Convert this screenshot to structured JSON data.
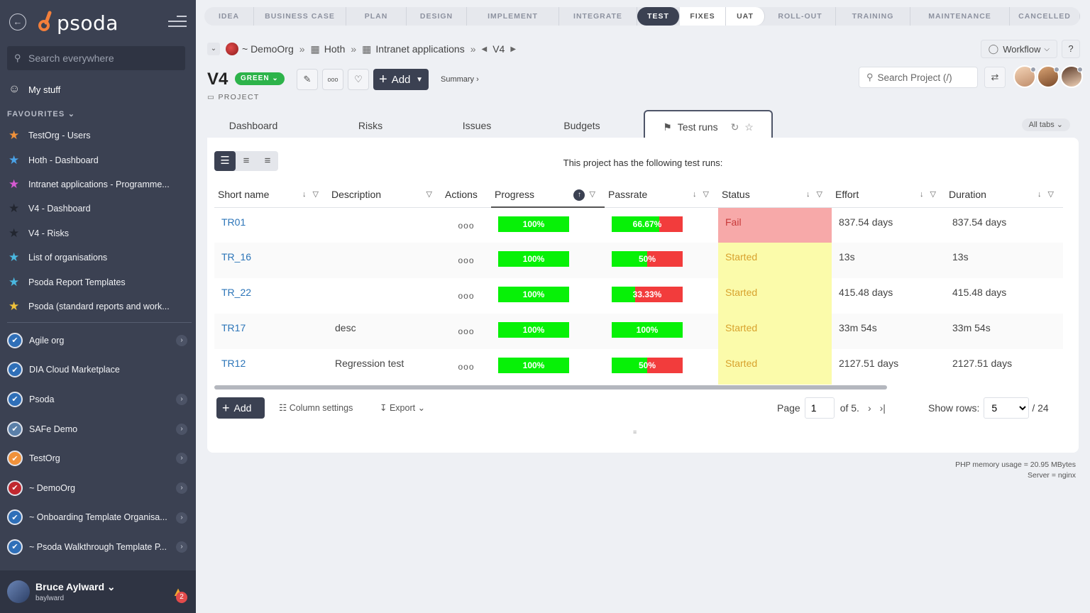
{
  "sidebar": {
    "logo_text": "psoda",
    "search_placeholder": "Search everywhere",
    "my_stuff": "My stuff",
    "favourites_heading": "FAVOURITES",
    "favourites": [
      {
        "label": "TestOrg - Users",
        "star_color": "#f0913a"
      },
      {
        "label": "Hoth - Dashboard",
        "star_color": "#4aa3e8"
      },
      {
        "label": "Intranet applications - Programme...",
        "star_color": "#d65ad2"
      },
      {
        "label": "V4 - Dashboard",
        "star_color": "#222630"
      },
      {
        "label": "V4 - Risks",
        "star_color": "#222630"
      },
      {
        "label": "List of organisations",
        "star_color": "#4ab8e0"
      },
      {
        "label": "Psoda Report Templates",
        "star_color": "#4ab8e0"
      },
      {
        "label": "Psoda (standard reports and work...",
        "star_color": "#f0c23a"
      }
    ],
    "organisations": [
      {
        "label": "Agile org",
        "badge_color": "#2f6fb8",
        "has_arrow": true
      },
      {
        "label": "DIA Cloud Marketplace",
        "badge_color": "#2f6fb8",
        "has_arrow": false
      },
      {
        "label": "Psoda",
        "badge_color": "#2f6fb8",
        "has_arrow": true
      },
      {
        "label": "SAFe Demo",
        "badge_color": "#5a7fa8",
        "has_arrow": true
      },
      {
        "label": "TestOrg",
        "badge_color": "#f0913a",
        "has_arrow": true
      },
      {
        "label": "~ DemoOrg",
        "badge_color": "#c0282f",
        "has_arrow": true
      },
      {
        "label": "~ Onboarding Template Organisa...",
        "badge_color": "#2f6fb8",
        "has_arrow": true
      },
      {
        "label": "~ Psoda Walkthrough Template P...",
        "badge_color": "#2f6fb8",
        "has_arrow": true
      }
    ],
    "user": {
      "name": "Bruce Aylward",
      "login": "baylward",
      "notifications": "2"
    }
  },
  "stages": [
    "IDEA",
    "BUSINESS CASE",
    "PLAN",
    "DESIGN",
    "IMPLEMENT",
    "INTEGRATE",
    "TEST",
    "FIXES",
    "UAT",
    "ROLL-OUT",
    "TRAINING",
    "MAINTENANCE",
    "CANCELLED"
  ],
  "breadcrumb": {
    "org": "~ DemoOrg",
    "portfolio": "Hoth",
    "programme": "Intranet applications",
    "project": "V4"
  },
  "header": {
    "title": "V4",
    "rag": "GREEN",
    "object_type": "PROJECT",
    "add_label": "Add",
    "summary_label": "Summary",
    "workflow_label": "Workflow",
    "help_label": "?",
    "search_placeholder": "Search Project (/)"
  },
  "tabs": {
    "items": [
      "Dashboard",
      "Risks",
      "Issues",
      "Budgets"
    ],
    "active": "Test runs",
    "all_tabs": "All tabs"
  },
  "panel": {
    "intro": "This project has the following test runs:",
    "columns": [
      "Short name",
      "Description",
      "Actions",
      "Progress",
      "Passrate",
      "Status",
      "Effort",
      "Duration"
    ],
    "rows": [
      {
        "name": "TR01",
        "description": "",
        "actions": "ooo",
        "progress": 100,
        "progress_label": "100%",
        "passrate": 66.67,
        "passrate_label": "66.67%",
        "status": "Fail",
        "effort": "837.54 days",
        "duration": "837.54 days"
      },
      {
        "name": "TR_16",
        "description": "",
        "actions": "ooo",
        "progress": 100,
        "progress_label": "100%",
        "passrate": 50,
        "passrate_label": "50%",
        "status": "Started",
        "effort": "13s",
        "duration": "13s"
      },
      {
        "name": "TR_22",
        "description": "",
        "actions": "ooo",
        "progress": 100,
        "progress_label": "100%",
        "passrate": 33.33,
        "passrate_label": "33.33%",
        "status": "Started",
        "effort": "415.48 days",
        "duration": "415.48 days"
      },
      {
        "name": "TR17",
        "description": "desc",
        "actions": "ooo",
        "progress": 100,
        "progress_label": "100%",
        "passrate": 100,
        "passrate_label": "100%",
        "status": "Started",
        "effort": "33m 54s",
        "duration": "33m 54s"
      },
      {
        "name": "TR12",
        "description": "Regression test",
        "actions": "ooo",
        "progress": 100,
        "progress_label": "100%",
        "passrate": 50,
        "passrate_label": "50%",
        "status": "Started",
        "effort": "2127.51 days",
        "duration": "2127.51 days"
      }
    ],
    "footer": {
      "add_label": "Add",
      "column_settings": "Column settings",
      "export": "Export",
      "page_label": "Page",
      "page_value": "1",
      "of_label": "of 5.",
      "show_rows_label": "Show rows:",
      "rows_value": "5",
      "total": "/ 24"
    }
  },
  "server_info": {
    "memory": "PHP memory usage = 20.95 MBytes",
    "server": "Server = nginx"
  }
}
